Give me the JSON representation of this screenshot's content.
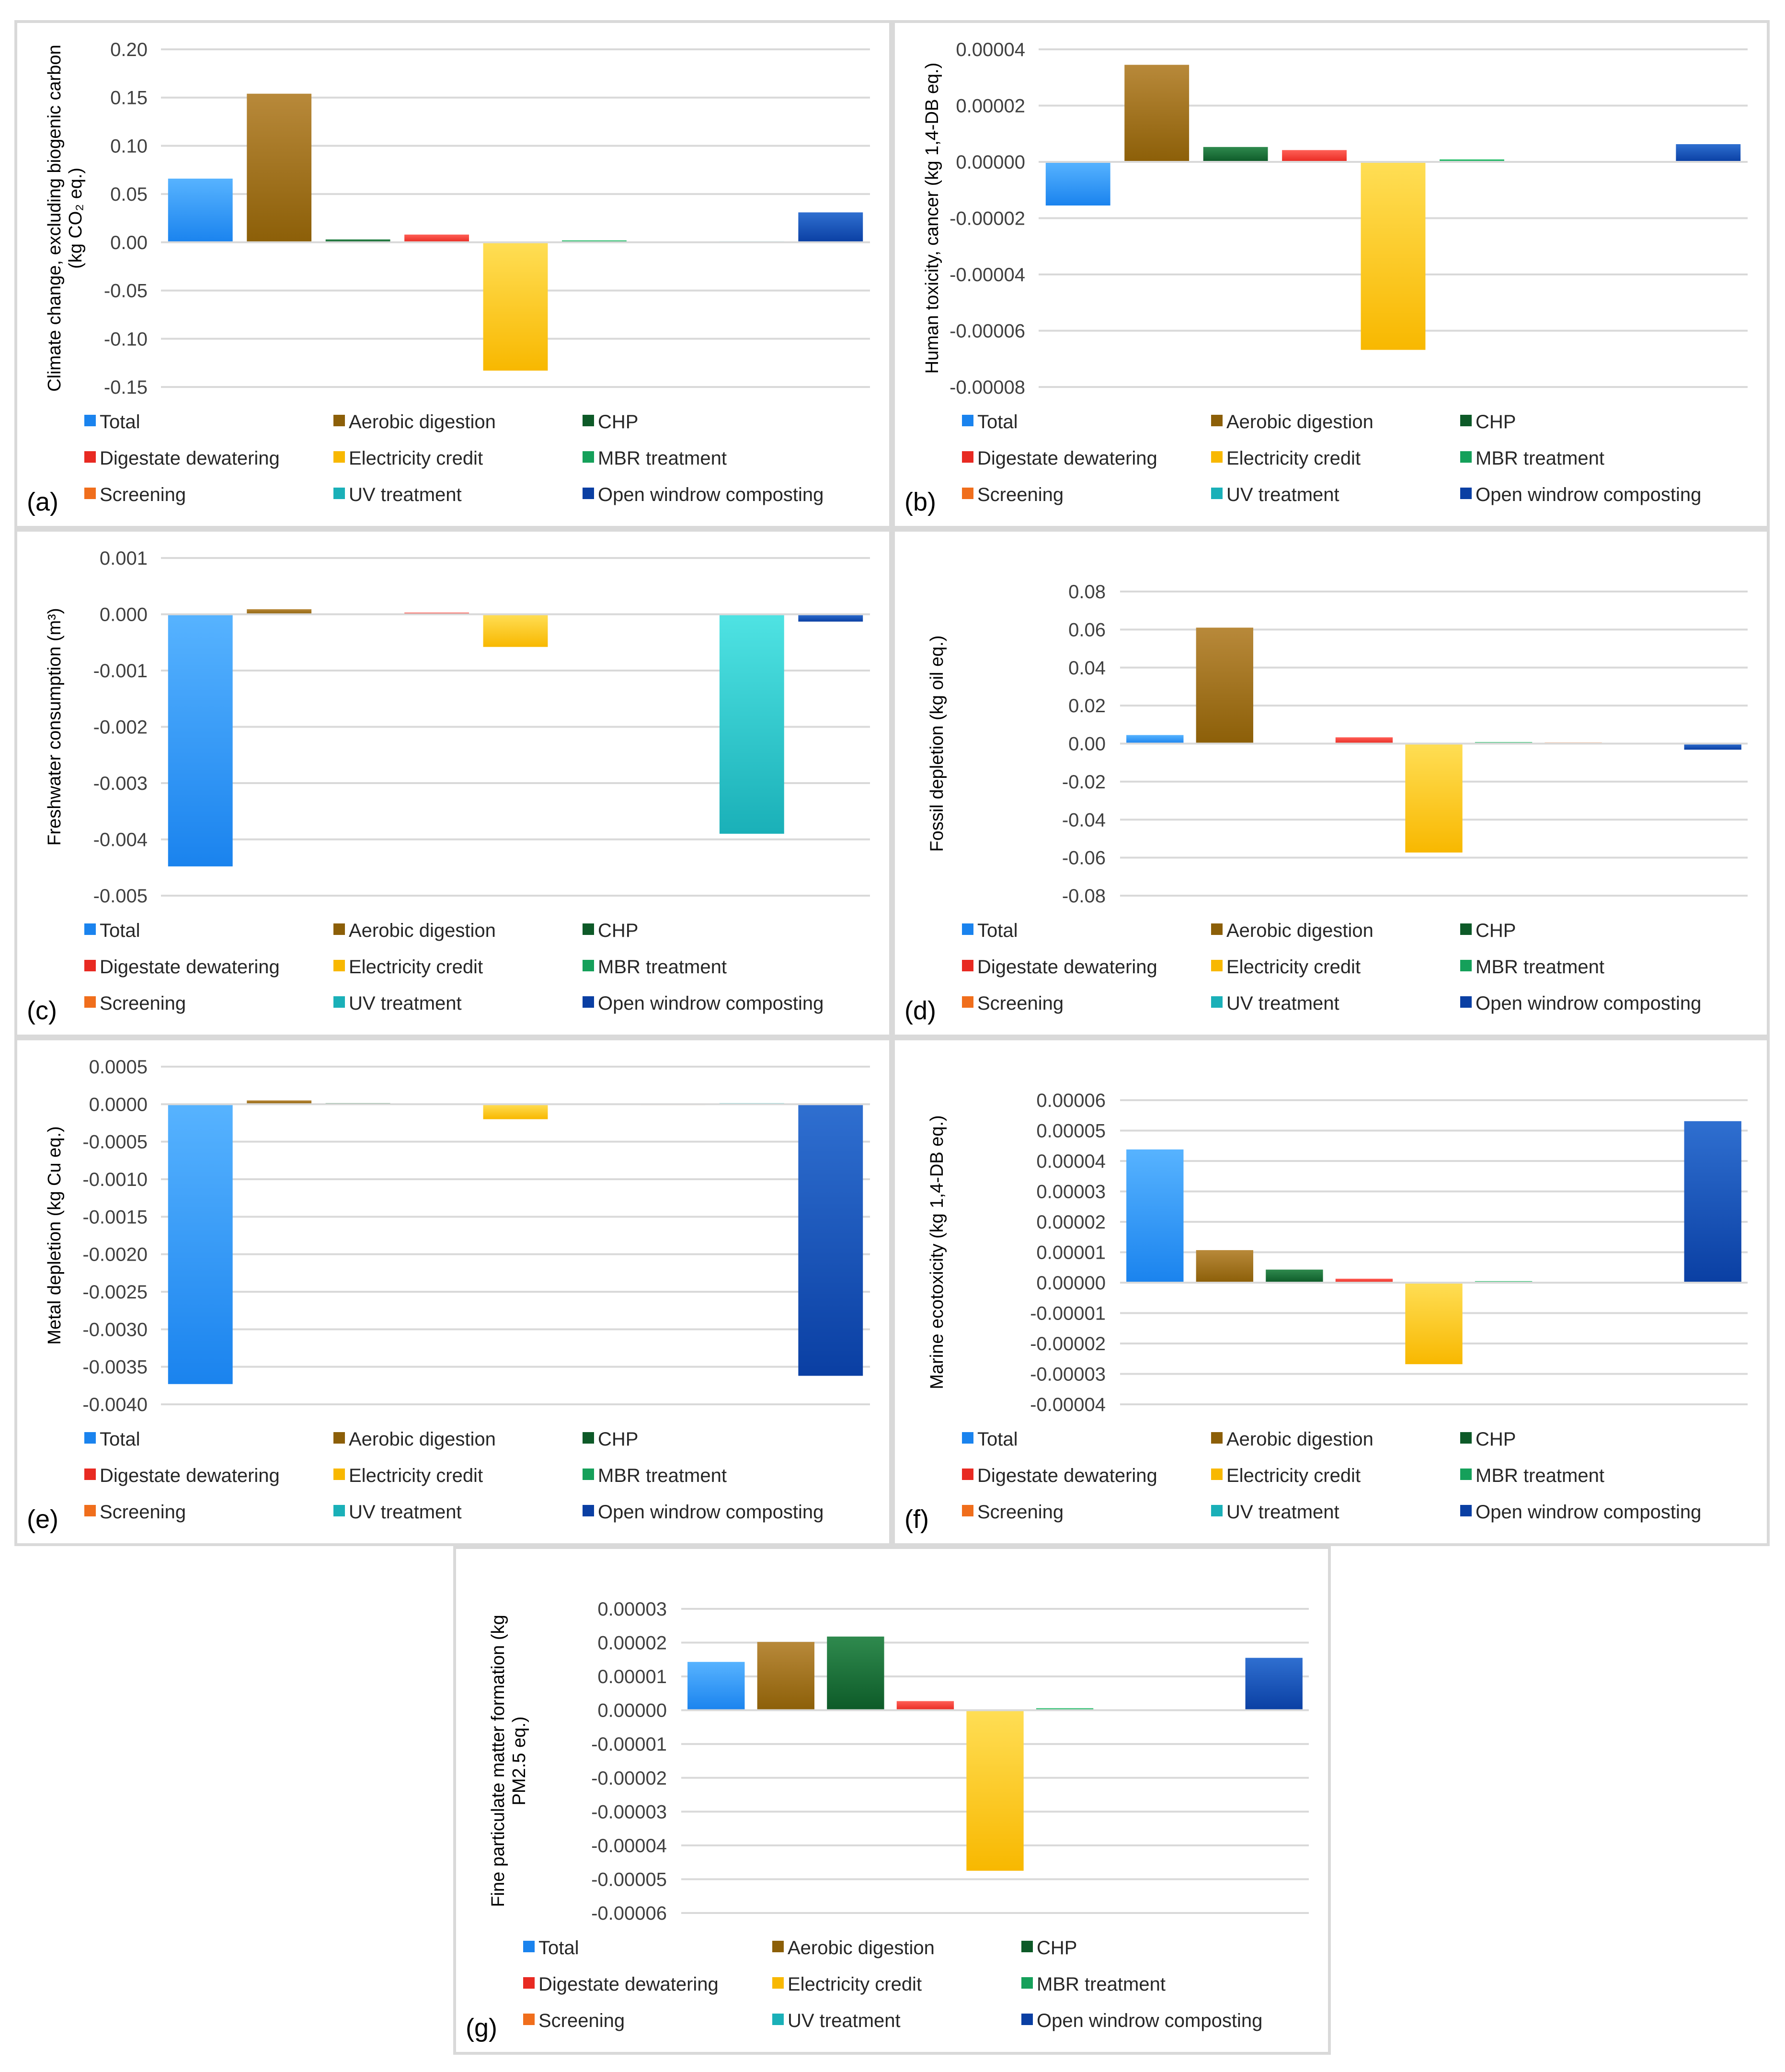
{
  "categories": [
    "Total",
    "Aerobic digestion",
    "CHP",
    "Digestate dewatering",
    "Electricity credit",
    "MBR treatment",
    "Screening",
    "UV treatment",
    "Open windrow composting"
  ],
  "colors": {
    "Total": [
      "#57b3ff",
      "#1a83ee"
    ],
    "Aerobic digestion": [
      "#b8893a",
      "#8c5f08"
    ],
    "CHP": [
      "#2f8a4e",
      "#0d5a28"
    ],
    "Digestate dewatering": [
      "#ff5f56",
      "#e82a22"
    ],
    "Electricity credit": [
      "#ffde55",
      "#f8b800"
    ],
    "MBR treatment": [
      "#37c977",
      "#15a05a"
    ],
    "Screening": [
      "#ff9a55",
      "#f06e1c"
    ],
    "UV treatment": [
      "#4fe3e3",
      "#1ab0b8"
    ],
    "Open windrow composting": [
      "#2f6fd0",
      "#0a3fa3"
    ]
  },
  "gridline_color": "#d9d9d9",
  "axis_line_color": "#d9d9d9",
  "chart_data": [
    {
      "id": "a",
      "panel_label": "(a)",
      "type": "bar",
      "ylabel_lines": [
        "Climate change, excluding biogenic carbon",
        "(kg CO₂ eq.)"
      ],
      "ylim": [
        -0.15,
        0.2
      ],
      "yticks": [
        -0.15,
        -0.1,
        -0.05,
        0,
        0.05,
        0.1,
        0.15,
        0.2
      ],
      "ytick_labels": [
        "-0.15",
        "-0.10",
        "-0.05",
        "0.00",
        "0.05",
        "0.10",
        "0.15",
        "0.20"
      ],
      "values": [
        0.066,
        0.154,
        0.003,
        0.008,
        -0.133,
        0.002,
        0.0008,
        0.001,
        0.031
      ]
    },
    {
      "id": "b",
      "panel_label": "(b)",
      "type": "bar",
      "ylabel_lines": [
        "Human toxicity, cancer (kg 1,4-DB eq.)"
      ],
      "ylim": [
        -8e-05,
        4e-05
      ],
      "yticks": [
        -8e-05,
        -6e-05,
        -4e-05,
        -2e-05,
        0,
        2e-05,
        4e-05
      ],
      "ytick_labels": [
        "-0.00008",
        "-0.00006",
        "-0.00004",
        "-0.00002",
        "0.00000",
        "0.00002",
        "0.00004"
      ],
      "values": [
        -1.55e-05,
        3.45e-05,
        5.3e-06,
        4.2e-06,
        -6.68e-05,
        9e-07,
        1e-07,
        3e-07,
        6.3e-06
      ]
    },
    {
      "id": "c",
      "panel_label": "(c)",
      "type": "bar",
      "ylabel_lines": [
        "Freshwater consumption (m³)"
      ],
      "ylim": [
        -0.005,
        0.001
      ],
      "yticks": [
        -0.005,
        -0.004,
        -0.003,
        -0.002,
        -0.001,
        0,
        0.001
      ],
      "ytick_labels": [
        "-0.005",
        "-0.004",
        "-0.003",
        "-0.002",
        "-0.001",
        "0.000",
        "0.001"
      ],
      "values": [
        -0.00448,
        9e-05,
        1.5e-05,
        3e-05,
        -0.00058,
        1e-05,
        1e-06,
        -0.0039,
        -0.00013
      ]
    },
    {
      "id": "d",
      "panel_label": "(d)",
      "type": "bar",
      "ylabel_lines": [
        "Fossil depletion (kg oil eq.)"
      ],
      "ylim": [
        -0.08,
        0.08
      ],
      "yticks": [
        -0.08,
        -0.06,
        -0.04,
        -0.02,
        0,
        0.02,
        0.04,
        0.06,
        0.08
      ],
      "ytick_labels": [
        "-0.08",
        "-0.06",
        "-0.04",
        "-0.02",
        "0.00",
        "0.02",
        "0.04",
        "0.06",
        "0.08"
      ],
      "values": [
        0.0045,
        0.061,
        0.0005,
        0.0033,
        -0.0573,
        0.0008,
        0.0006,
        0.0004,
        -0.0032
      ]
    },
    {
      "id": "e",
      "panel_label": "(e)",
      "type": "bar",
      "ylabel_lines": [
        "Metal depletion (kg Cu eq.)"
      ],
      "ylim": [
        -0.004,
        0.0005
      ],
      "yticks": [
        -0.004,
        -0.0035,
        -0.003,
        -0.0025,
        -0.002,
        -0.0015,
        -0.001,
        -0.0005,
        0,
        0.0005
      ],
      "ytick_labels": [
        "-0.0040",
        "-0.0035",
        "-0.0030",
        "-0.0025",
        "-0.0020",
        "-0.0015",
        "-0.0010",
        "-0.0005",
        "0.0000",
        "0.0005"
      ],
      "values": [
        -0.00373,
        5e-05,
        1.5e-05,
        1e-05,
        -0.0002,
        1e-05,
        1e-06,
        1.5e-05,
        -0.00362
      ]
    },
    {
      "id": "f",
      "panel_label": "(f)",
      "type": "bar",
      "ylabel_lines": [
        "Marine ecotoxicity (kg 1,4-DB eq.)"
      ],
      "ylim": [
        -4e-05,
        6e-05
      ],
      "yticks": [
        -4e-05,
        -3e-05,
        -2e-05,
        -1e-05,
        0,
        1e-05,
        2e-05,
        3e-05,
        4e-05,
        5e-05,
        6e-05
      ],
      "ytick_labels": [
        "-0.00004",
        "-0.00003",
        "-0.00002",
        "-0.00001",
        "0.00000",
        "0.00001",
        "0.00002",
        "0.00003",
        "0.00004",
        "0.00005",
        "0.00006"
      ],
      "values": [
        4.38e-05,
        1.07e-05,
        4.3e-06,
        1.3e-06,
        -2.68e-05,
        5e-07,
        1e-07,
        1e-07,
        5.31e-05
      ]
    },
    {
      "id": "g",
      "panel_label": "(g)",
      "type": "bar",
      "ylabel_lines": [
        "Fine particulate matter formation (kg",
        "PM2.5 eq.)"
      ],
      "ylim": [
        -6e-05,
        3e-05
      ],
      "yticks": [
        -6e-05,
        -5e-05,
        -4e-05,
        -3e-05,
        -2e-05,
        -1e-05,
        0,
        1e-05,
        2e-05,
        3e-05
      ],
      "ytick_labels": [
        "-0.00006",
        "-0.00005",
        "-0.00004",
        "-0.00003",
        "-0.00002",
        "-0.00001",
        "0.00000",
        "0.00001",
        "0.00002",
        "0.00003"
      ],
      "values": [
        1.43e-05,
        2.02e-05,
        2.18e-05,
        2.7e-06,
        -4.75e-05,
        6e-07,
        1e-07,
        1e-07,
        1.55e-05
      ]
    }
  ]
}
